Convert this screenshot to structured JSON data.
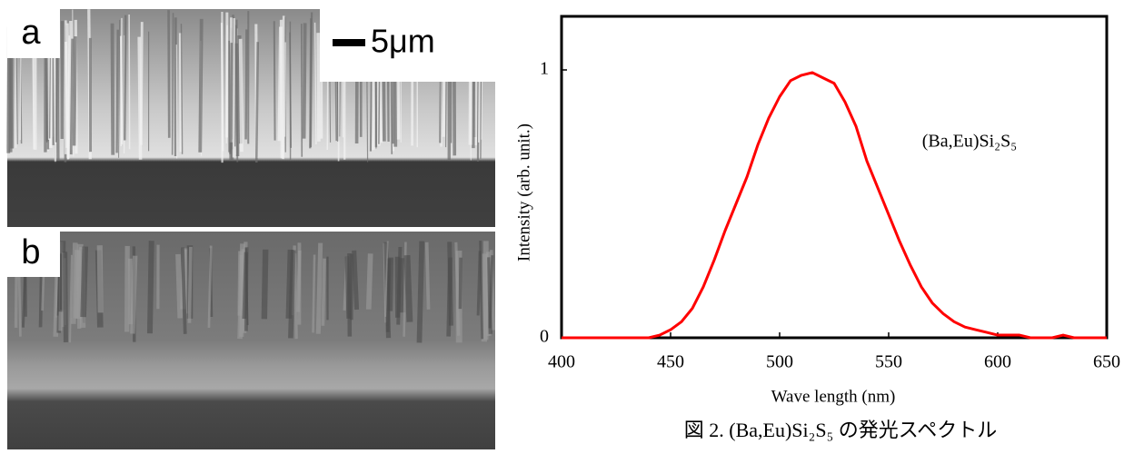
{
  "figure": {
    "panels": [
      {
        "label": "a"
      },
      {
        "label": "b"
      }
    ],
    "scale_bar": "5μm",
    "caption": "図 2. (Ba,Eu)Si₂S₅ の発光スペクトル"
  },
  "chart_data": {
    "type": "line",
    "x": [
      400,
      405,
      410,
      415,
      420,
      425,
      430,
      435,
      440,
      445,
      450,
      455,
      460,
      465,
      470,
      475,
      480,
      485,
      490,
      495,
      500,
      505,
      510,
      515,
      520,
      525,
      530,
      535,
      540,
      545,
      550,
      555,
      560,
      565,
      570,
      575,
      580,
      585,
      590,
      595,
      600,
      605,
      610,
      615,
      620,
      625,
      630,
      635,
      640,
      645,
      650
    ],
    "values": [
      0,
      0,
      0,
      0,
      0,
      0,
      0,
      0,
      0,
      0.01,
      0.03,
      0.06,
      0.11,
      0.19,
      0.29,
      0.4,
      0.5,
      0.6,
      0.72,
      0.82,
      0.9,
      0.96,
      0.98,
      0.99,
      0.97,
      0.95,
      0.88,
      0.79,
      0.66,
      0.56,
      0.46,
      0.36,
      0.27,
      0.19,
      0.13,
      0.09,
      0.06,
      0.04,
      0.03,
      0.02,
      0.01,
      0.01,
      0.01,
      0,
      0,
      0,
      0.01,
      0,
      0,
      0,
      0
    ],
    "color": "#ff0000",
    "xlim": [
      400,
      650
    ],
    "xticks": [
      400,
      450,
      500,
      550,
      600,
      650
    ],
    "ylim": [
      0,
      1.2
    ],
    "yticks": [
      0,
      1
    ],
    "xlabel": "Wave length (nm)",
    "ylabel": "Intensity (arb. unit.)",
    "annotation": "(Ba,Eu)Si₂S₅"
  }
}
